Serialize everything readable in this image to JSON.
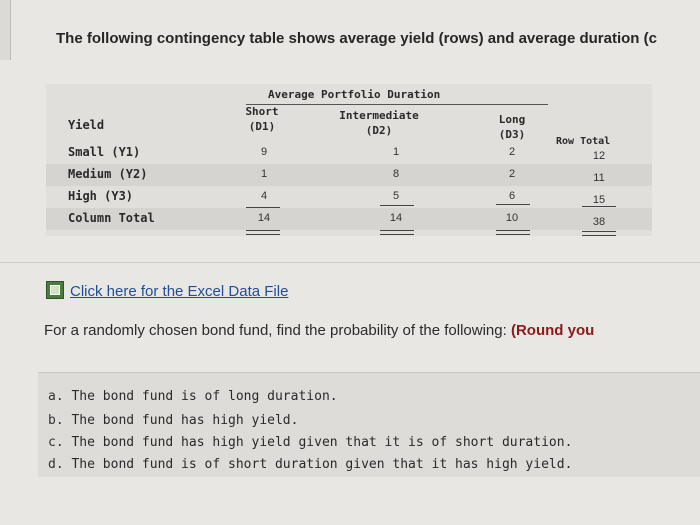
{
  "question": {
    "text": "The following contingency table shows average yield (rows) and average duration (c"
  },
  "table": {
    "group_title": "Average Portfolio Duration",
    "yield_label": "Yield",
    "row_total_label": "Row Total",
    "columns": [
      {
        "name": "Short",
        "code": "(D1)"
      },
      {
        "name": "Intermediate",
        "code": "(D2)"
      },
      {
        "name": "Long",
        "code": "(D3)"
      }
    ],
    "rows": [
      {
        "label": "Small (Y1)",
        "values": [
          "9",
          "1",
          "2"
        ],
        "total": "12"
      },
      {
        "label": "Medium (Y2)",
        "values": [
          "1",
          "8",
          "2"
        ],
        "total": "11"
      },
      {
        "label": "High (Y3)",
        "values": [
          "4",
          "5",
          "6"
        ],
        "total": "15"
      }
    ],
    "column_total": {
      "label": "Column Total",
      "values": [
        "14",
        "14",
        "10"
      ],
      "total": "38"
    }
  },
  "excel_link": {
    "text": "Click here for the Excel Data File"
  },
  "prompt": {
    "text": "For a randomly chosen bond fund, find the probability of the following: ",
    "hint": "(Round you"
  },
  "parts": [
    {
      "letter": "a.",
      "text": "The bond fund is of long duration."
    },
    {
      "letter": "b.",
      "text": "The bond fund has high yield."
    },
    {
      "letter": "c.",
      "text": "The bond fund has high yield given that it is of short duration."
    },
    {
      "letter": "d.",
      "text": "The bond fund is of short duration given that it has high yield."
    }
  ]
}
